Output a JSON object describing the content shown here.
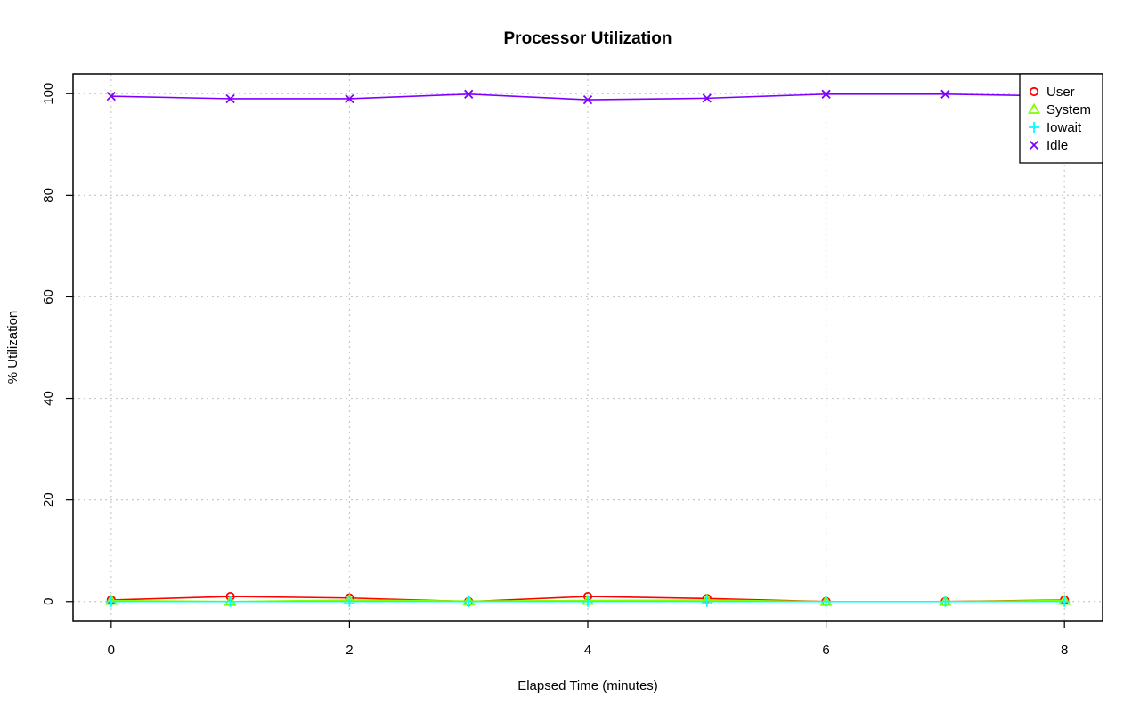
{
  "chart_data": {
    "type": "line",
    "title": "Processor Utilization",
    "xlabel": "Elapsed Time (minutes)",
    "ylabel": "% Utilization",
    "x": [
      0,
      1,
      2,
      3,
      4,
      5,
      6,
      7,
      8
    ],
    "xlim": [
      -0.32,
      8.32
    ],
    "ylim": [
      -3.9,
      103.9
    ],
    "xticks": [
      0,
      2,
      4,
      6,
      8
    ],
    "yticks": [
      0,
      20,
      40,
      60,
      80,
      100
    ],
    "grid": true,
    "legend": "top-right",
    "series": [
      {
        "name": "User",
        "color": "#ff0000",
        "marker": "circle",
        "values": [
          0.3,
          1.0,
          0.7,
          0.0,
          1.0,
          0.6,
          0.0,
          0.0,
          0.3
        ]
      },
      {
        "name": "System",
        "color": "#80ff00",
        "marker": "triangle",
        "values": [
          0.2,
          0.0,
          0.3,
          0.1,
          0.2,
          0.3,
          0.0,
          0.0,
          0.2
        ]
      },
      {
        "name": "Iowait",
        "color": "#00ffff",
        "marker": "plus",
        "values": [
          0.0,
          0.0,
          0.0,
          0.0,
          0.0,
          0.0,
          0.0,
          0.0,
          0.0
        ]
      },
      {
        "name": "Idle",
        "color": "#8000ff",
        "marker": "cross",
        "values": [
          99.5,
          99.0,
          99.0,
          99.9,
          98.8,
          99.1,
          99.9,
          99.9,
          99.5
        ]
      }
    ]
  }
}
